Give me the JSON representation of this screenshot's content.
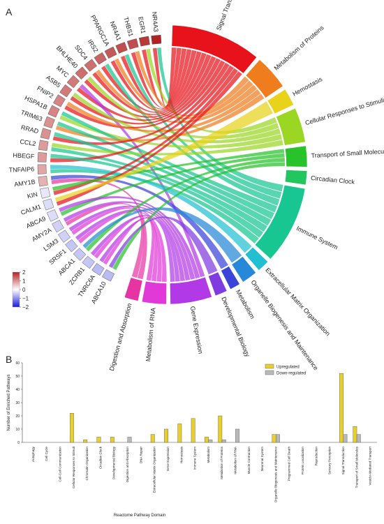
{
  "panel_a": {
    "label": "A",
    "genes": [
      "NR4A3",
      "EGR1",
      "THBS1",
      "NR4A1",
      "PPARGC1A",
      "IRS2",
      "SDC4",
      "BHLHE40",
      "MYC",
      "ASB5",
      "FNIP2",
      "HSPA1B",
      "TRIM63",
      "RRAD",
      "CCL2",
      "HBEGF",
      "TNFAIP6",
      "AMY1B",
      "KIN",
      "CALM1",
      "ABCA9",
      "AMY2A",
      "LSM3",
      "SRSF1",
      "ABCA1",
      "ZCRB1",
      "TNRC6A",
      "ABCA10"
    ],
    "gene_values": [
      2.0,
      1.8,
      1.6,
      1.6,
      1.5,
      1.4,
      1.3,
      1.3,
      1.2,
      1.2,
      1.1,
      1.1,
      1.0,
      1.0,
      0.9,
      0.9,
      0.8,
      0.7,
      -0.2,
      -0.3,
      -0.3,
      -0.4,
      -0.4,
      -0.5,
      -0.5,
      -0.5,
      -0.6,
      -0.6
    ],
    "pathways": [
      {
        "name": "Signal Transduction",
        "color": "#e8131a",
        "span": 52
      },
      {
        "name": "Metabolism of Proteins",
        "color": "#ef7d1d",
        "span": 20
      },
      {
        "name": "Hemostasis",
        "color": "#e8d21a",
        "span": 10
      },
      {
        "name": "Cellular Responses to Stimuli",
        "color": "#9bd622",
        "span": 20
      },
      {
        "name": "Transport of Small Molecules",
        "color": "#28c22a",
        "span": 12
      },
      {
        "name": "Circadian Clock",
        "color": "#21c65e",
        "span": 8
      },
      {
        "name": "Immune System",
        "color": "#17c690",
        "span": 45
      },
      {
        "name": "Extracellular Matrix Organization",
        "color": "#22bfd3",
        "span": 7
      },
      {
        "name": "Organelle Biogenesis and Maintenance",
        "color": "#2688d8",
        "span": 9
      },
      {
        "name": "Metabolism",
        "color": "#3a44d8",
        "span": 6
      },
      {
        "name": "Developmental Biology",
        "color": "#7f3ae0",
        "span": 7
      },
      {
        "name": "Gene Expression",
        "color": "#b23ae6",
        "span": 24
      },
      {
        "name": "Metabolism of RNA",
        "color": "#e039d8",
        "span": 14
      },
      {
        "name": "Digestion and Absorption",
        "color": "#e734a3",
        "span": 8
      }
    ],
    "legend_ticks": [
      "2",
      "1",
      "0",
      "−1",
      "−2"
    ]
  },
  "panel_b": {
    "label": "B",
    "chart_data": {
      "type": "bar",
      "ylabel": "Number of Enriched Pathways",
      "xlabel": "Reactome Pathway Domain",
      "ylim": [
        0,
        60
      ],
      "yticks": [
        "0",
        "10",
        "20",
        "30",
        "40",
        "50",
        "60"
      ],
      "categories": [
        "Autophagy",
        "Cell Cycle",
        "Cell-Cell Communication",
        "Cellular Responses to Stimuli",
        "Chromatin Organization",
        "Circadian Clock",
        "Developmental Biology",
        "Digestion and Absorption",
        "DNA Repair",
        "Extracellular Matrix Organization",
        "Gene Expression",
        "Hemostasis",
        "Immune System",
        "Metabolism",
        "Metabolism of Proteins",
        "Metabolism of RNA",
        "Muscle Contraction",
        "Neuronal System",
        "Organelle Biogenesis and Maintenance",
        "Programmed Cell Death",
        "Protein Localization",
        "Reproduction",
        "Sensory Perception",
        "Signal Transduction",
        "Transport of Small Molecules",
        "Vesicle-Mediated Transport"
      ],
      "series": [
        {
          "name": "Upregulated",
          "color": "#e8cf2c",
          "values": [
            0,
            0,
            0,
            22,
            2,
            4,
            4,
            0,
            0,
            6,
            10,
            14,
            18,
            4,
            20,
            0,
            0,
            0,
            6,
            0,
            0,
            0,
            0,
            52,
            12,
            0
          ]
        },
        {
          "name": "Down-regulated",
          "color": "#b9b9b9",
          "values": [
            0,
            0,
            0,
            0,
            0,
            0,
            0,
            4,
            0,
            0,
            0,
            0,
            0,
            2,
            2,
            10,
            0,
            0,
            6,
            0,
            0,
            0,
            0,
            6,
            6,
            0
          ]
        }
      ],
      "legend_position": "top-right"
    }
  }
}
